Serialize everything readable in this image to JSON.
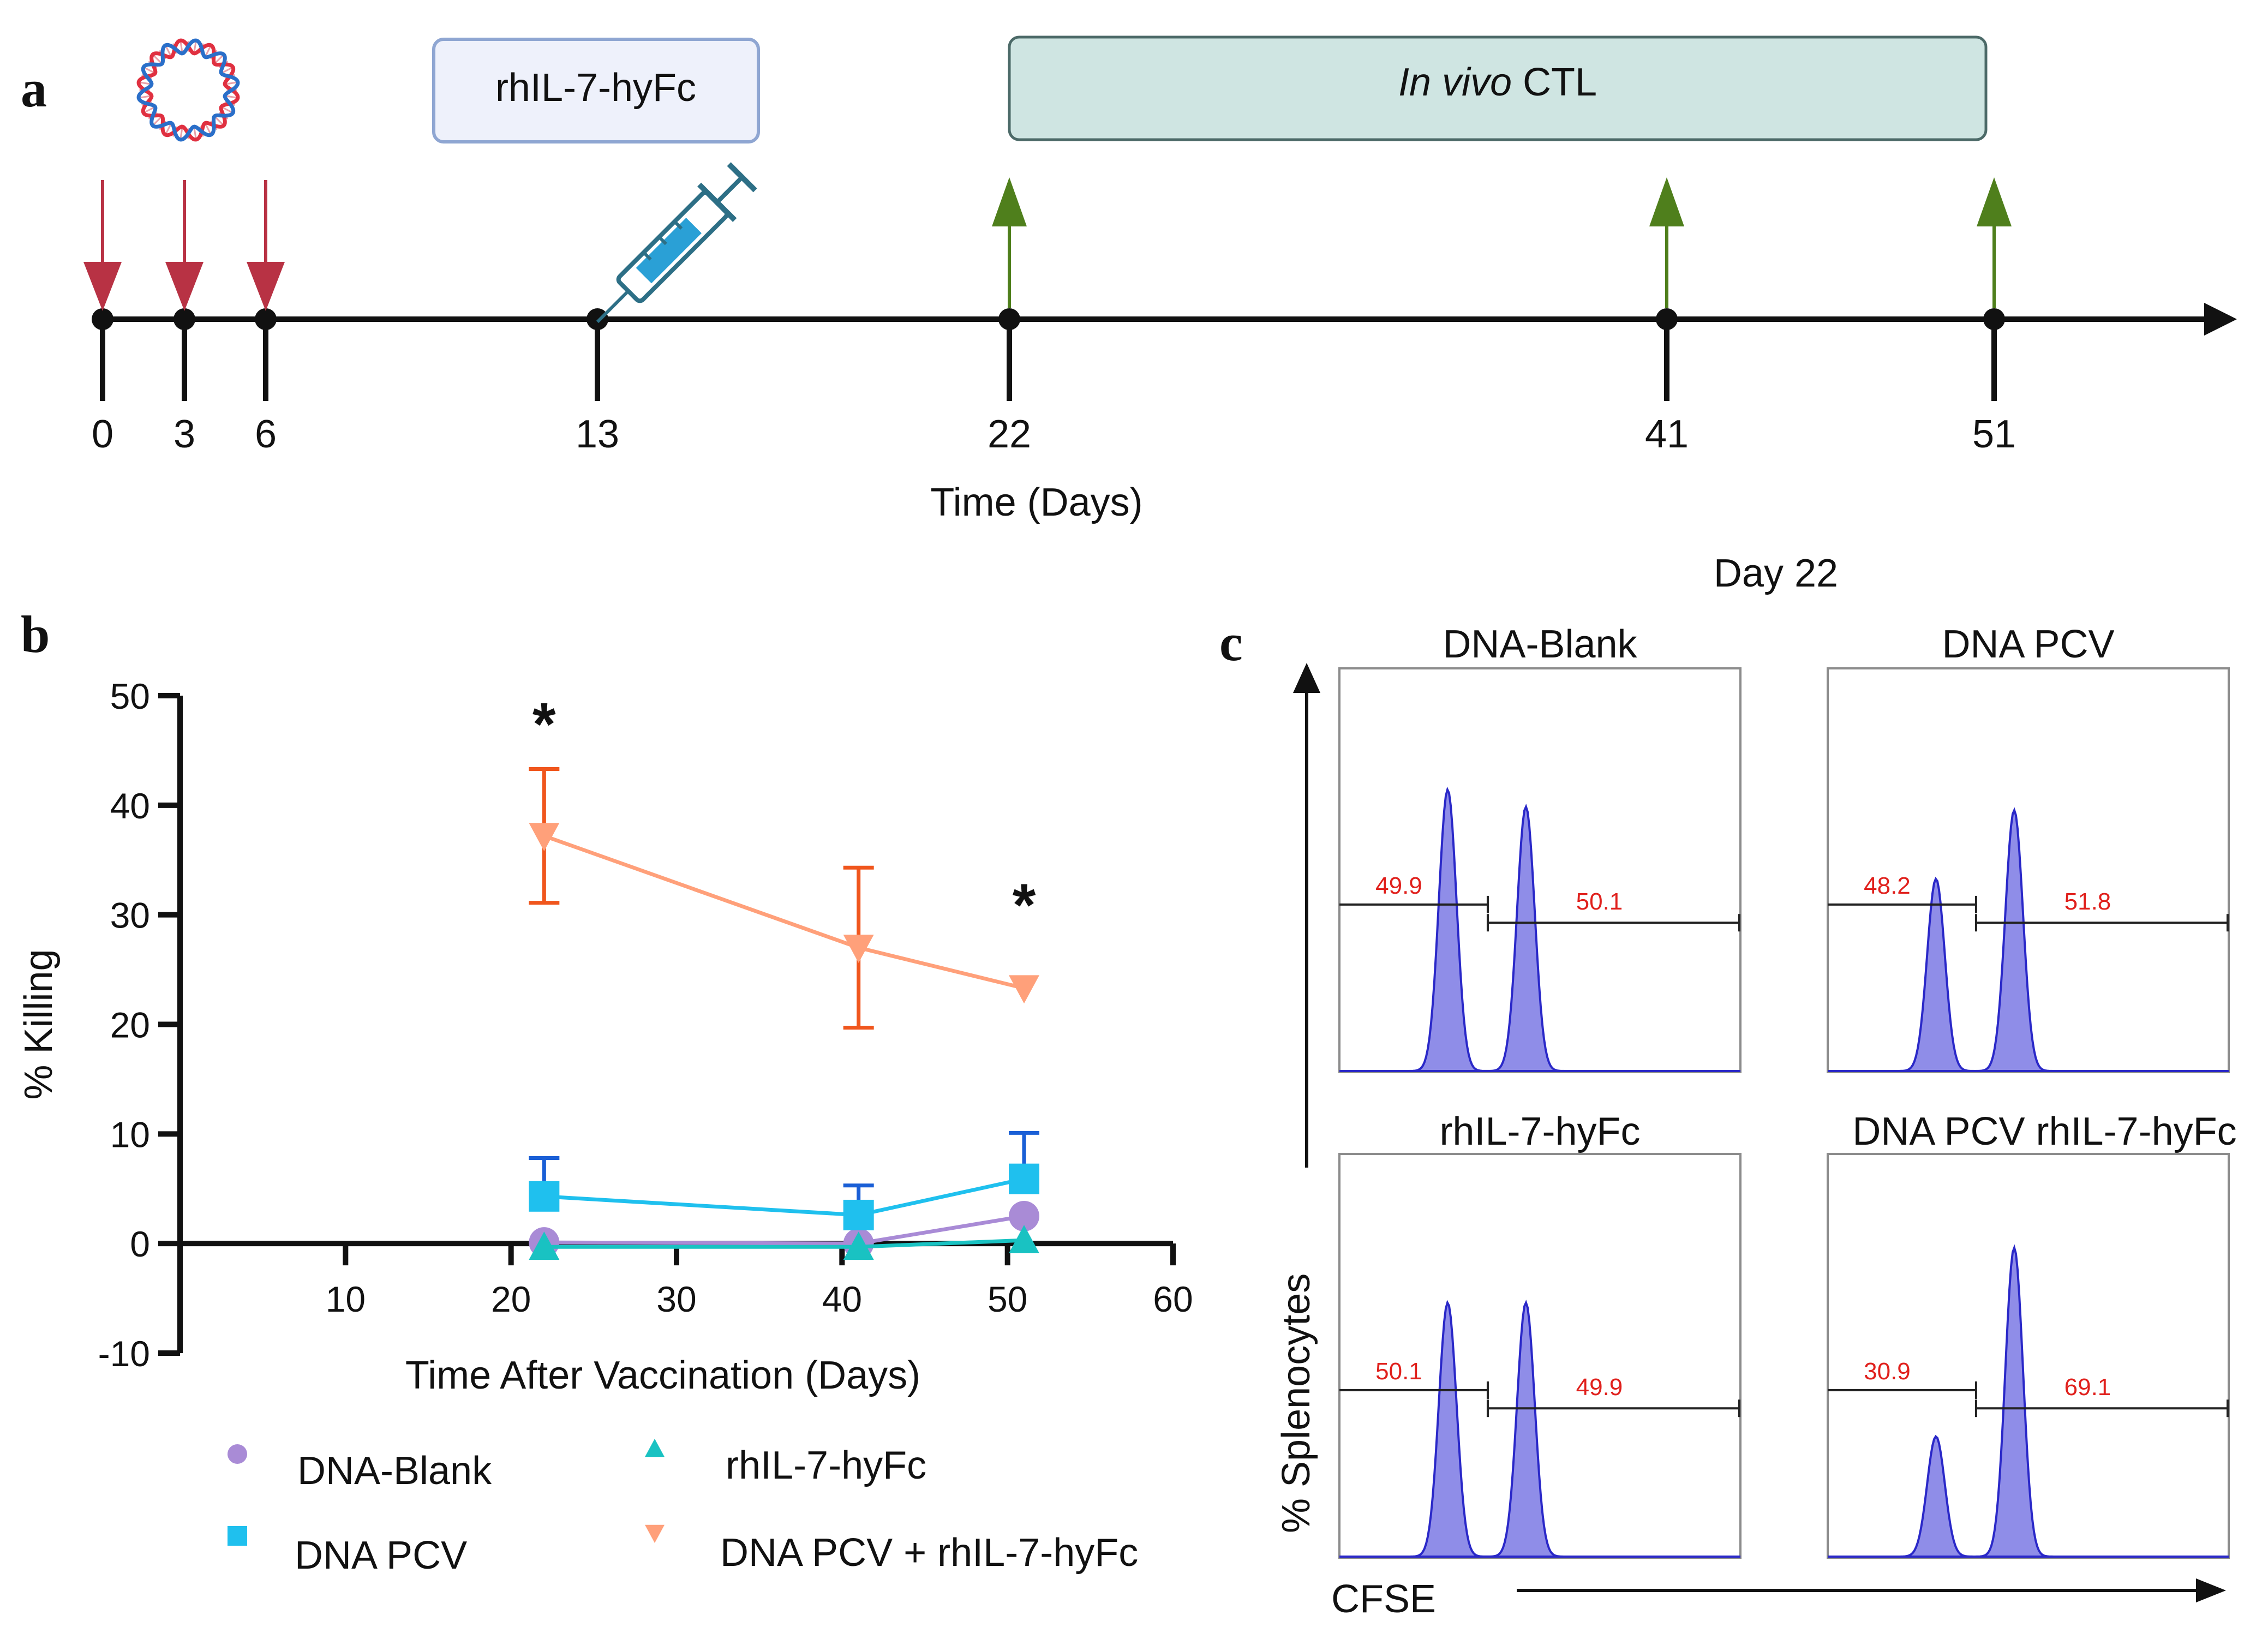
{
  "colors": {
    "black": "#111111",
    "red_arrow": "#b83244",
    "green_arrow": "#4f7f1c",
    "dna_blank": "#a98bd6",
    "dna_pcv": "#1fc0ee",
    "dna_pcv_err": "#1a5fd6",
    "rhil7": "#19c2c2",
    "combo": "#ffa07a",
    "combo_err": "#f0561d",
    "hist_fill": "#8f8de8",
    "hist_line": "#2a28c8",
    "gate_text": "#e0201c",
    "box_rhil7_fill": "#eef1fb",
    "box_rhil7_stroke": "#8fa6d2",
    "box_ctl_fill": "#cfe5e2",
    "box_ctl_stroke": "#4c6a68"
  },
  "panel_a": {
    "letter": "a",
    "icons": [
      "plasmid-dna-icon",
      "syringe-icon"
    ],
    "box_rhil7": "rhIL-7-hyFc",
    "box_ctl_italic": "In vivo",
    "box_ctl_rest": " CTL",
    "days": [
      "0",
      "3",
      "6",
      "13",
      "22",
      "41",
      "51"
    ],
    "time_label": "Time (Days)"
  },
  "panel_b": {
    "letter": "b"
  },
  "panel_c": {
    "letter": "c",
    "day_label": "Day 22",
    "y_axis_label": "% Splenocytes",
    "x_axis_label": "CFSE",
    "histograms": [
      {
        "title": "DNA-Blank",
        "left_gate": "49.9",
        "right_gate": "50.1",
        "peak_left": 0.82,
        "peak_right": 0.77
      },
      {
        "title": "DNA PCV",
        "left_gate": "48.2",
        "right_gate": "51.8",
        "peak_left": 0.56,
        "peak_right": 0.76
      },
      {
        "title": "rhIL-7-hyFc",
        "left_gate": "50.1",
        "right_gate": "49.9",
        "peak_left": 0.74,
        "peak_right": 0.74
      },
      {
        "title": "DNA PCV rhIL-7-hyFc",
        "left_gate": "30.9",
        "right_gate": "69.1",
        "peak_left": 0.35,
        "peak_right": 0.9
      }
    ]
  },
  "chart_data": {
    "type": "line",
    "xlabel": "Time After Vaccination (Days)",
    "ylabel": "% Killing",
    "xlim": [
      0,
      60
    ],
    "ylim": [
      -10,
      50
    ],
    "xticks": [
      "10",
      "20",
      "30",
      "40",
      "50",
      "60"
    ],
    "yticks": [
      "-10",
      "0",
      "10",
      "20",
      "30",
      "40",
      "50"
    ],
    "annotations": [
      {
        "text": "*",
        "x": 22,
        "y": 47.5
      },
      {
        "text": "*",
        "x": 51,
        "y": 31
      }
    ],
    "series": [
      {
        "name": "DNA-Blank",
        "marker": "circle",
        "x": [
          22,
          41,
          51
        ],
        "values": [
          0.1,
          0.0,
          2.5
        ],
        "err_up": [
          0,
          0,
          0
        ],
        "err_down": [
          0,
          0,
          0
        ]
      },
      {
        "name": "DNA PCV",
        "marker": "square",
        "x": [
          22,
          41,
          51
        ],
        "values": [
          4.3,
          2.6,
          5.9
        ],
        "err_up": [
          3.5,
          2.7,
          4.2
        ],
        "err_down": [
          0,
          0,
          0
        ]
      },
      {
        "name": "rhIL-7-hyFc",
        "marker": "triangle-up",
        "x": [
          22,
          41,
          51
        ],
        "values": [
          -0.3,
          -0.3,
          0.3
        ],
        "err_up": [
          0,
          0,
          0
        ],
        "err_down": [
          0,
          0,
          0
        ]
      },
      {
        "name": "DNA PCV + rhIL-7-hyFc",
        "marker": "triangle-down",
        "x": [
          22,
          41,
          51
        ],
        "values": [
          37.2,
          27.0,
          23.3
        ],
        "err_up": [
          6.1,
          7.3,
          0
        ],
        "err_down": [
          6.1,
          7.3,
          0
        ]
      }
    ]
  }
}
